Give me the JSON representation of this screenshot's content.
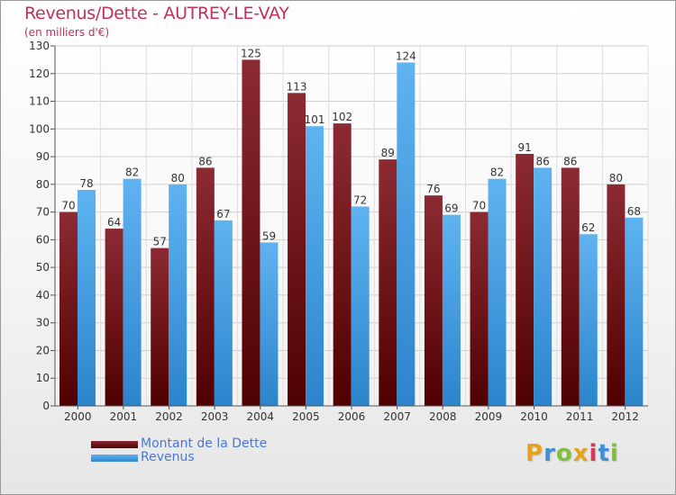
{
  "chart_data": {
    "type": "bar",
    "title": "Revenus/Dette - AUTREY-LE-VAY",
    "subtitle": "(en milliers d'€)",
    "categories": [
      "2000",
      "2001",
      "2002",
      "2003",
      "2004",
      "2005",
      "2006",
      "2007",
      "2008",
      "2009",
      "2010",
      "2011",
      "2012"
    ],
    "series": [
      {
        "name": "Montant de la Dette",
        "color": "#8b1e24",
        "values": [
          70,
          64,
          57,
          86,
          125,
          113,
          102,
          89,
          76,
          70,
          91,
          86,
          80
        ]
      },
      {
        "name": "Revenus",
        "color": "#4aa3e6",
        "values": [
          78,
          82,
          80,
          67,
          59,
          101,
          72,
          124,
          69,
          82,
          86,
          62,
          68
        ]
      }
    ],
    "ylim": [
      0,
      130
    ],
    "yticks": [
      0,
      10,
      20,
      30,
      40,
      50,
      60,
      70,
      80,
      90,
      100,
      110,
      120,
      130
    ],
    "grid": true,
    "legend_position": "bottom-left",
    "data_labels": true
  },
  "logo": {
    "letters": [
      "P",
      "r",
      "o",
      "x",
      "i",
      "t",
      "i"
    ],
    "colors": [
      "#e8a21c",
      "#3d8fd6",
      "#7fbf3a",
      "#e8a21c",
      "#d6395a",
      "#3d8fd6",
      "#7fbf3a"
    ]
  }
}
